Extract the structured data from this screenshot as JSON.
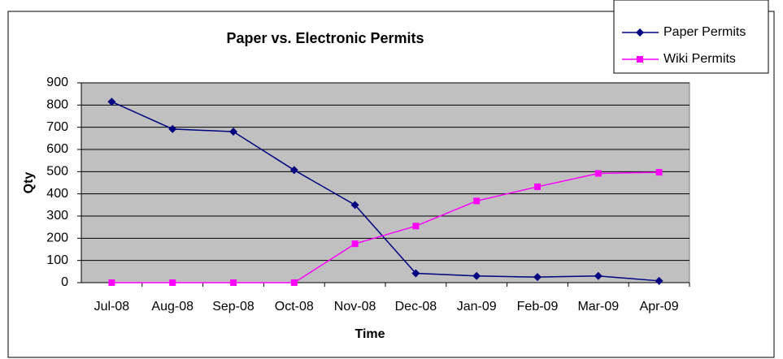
{
  "chart_data": {
    "type": "line",
    "title": "Paper vs. Electronic Permits",
    "x_label": "Time",
    "y_label": "Qty",
    "categories": [
      "Jul-08",
      "Aug-08",
      "Sep-08",
      "Oct-08",
      "Nov-08",
      "Dec-08",
      "Jan-09",
      "Feb-09",
      "Mar-09",
      "Apr-09"
    ],
    "series": [
      {
        "name": "Paper Permits",
        "color": "#000080",
        "marker": "diamond",
        "values": [
          815,
          692,
          680,
          507,
          350,
          42,
          30,
          25,
          30,
          8
        ]
      },
      {
        "name": "Wiki Permits",
        "color": "#ff00ff",
        "marker": "square",
        "values": [
          0,
          0,
          0,
          0,
          175,
          255,
          368,
          432,
          492,
          497
        ]
      }
    ],
    "ylim": [
      0,
      900
    ],
    "yticks": [
      0,
      100,
      200,
      300,
      400,
      500,
      600,
      700,
      800,
      900
    ],
    "grid": true,
    "plot_background": "#c0c0c0",
    "legend": "top-right"
  }
}
